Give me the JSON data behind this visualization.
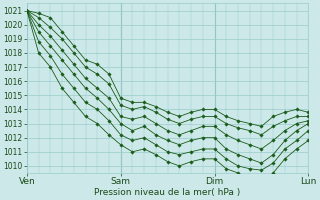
{
  "title": "Pression niveau de la mer( hPa )",
  "ylabel_values": [
    1010,
    1011,
    1012,
    1013,
    1014,
    1015,
    1016,
    1017,
    1018,
    1019,
    1020,
    1021
  ],
  "ylim": [
    1009.5,
    1021.5
  ],
  "xlim": [
    0,
    72
  ],
  "xtick_positions": [
    0,
    24,
    48,
    72
  ],
  "xtick_labels": [
    "Ven",
    "Sam",
    "Dim",
    "Lun"
  ],
  "bg_color": "#cce8e8",
  "grid_color": "#99cccc",
  "line_color": "#1a5c1a",
  "lines": [
    {
      "x": [
        0,
        3,
        6,
        9,
        12,
        15,
        18,
        21,
        24,
        27,
        30,
        33,
        36,
        39,
        42,
        45,
        48,
        51,
        54,
        57,
        60,
        63,
        66,
        69,
        72
      ],
      "y": [
        1021,
        1020.8,
        1020.5,
        1019.5,
        1018.5,
        1017.5,
        1017.2,
        1016.5,
        1014.8,
        1014.5,
        1014.5,
        1014.2,
        1013.8,
        1013.5,
        1013.8,
        1014.0,
        1014.0,
        1013.5,
        1013.2,
        1013.0,
        1012.8,
        1013.5,
        1013.8,
        1014.0,
        1013.8
      ]
    },
    {
      "x": [
        0,
        3,
        6,
        9,
        12,
        15,
        18,
        21,
        24,
        27,
        30,
        33,
        36,
        39,
        42,
        45,
        48,
        51,
        54,
        57,
        60,
        63,
        66,
        69,
        72
      ],
      "y": [
        1021,
        1020.5,
        1019.8,
        1019.0,
        1018.0,
        1017.0,
        1016.5,
        1015.8,
        1014.3,
        1014.0,
        1014.2,
        1013.8,
        1013.3,
        1013.0,
        1013.3,
        1013.5,
        1013.5,
        1013.0,
        1012.7,
        1012.5,
        1012.2,
        1012.8,
        1013.2,
        1013.5,
        1013.5
      ]
    },
    {
      "x": [
        0,
        3,
        6,
        9,
        12,
        15,
        18,
        21,
        24,
        27,
        30,
        33,
        36,
        39,
        42,
        45,
        48,
        51,
        54,
        57,
        60,
        63,
        66,
        69,
        72
      ],
      "y": [
        1021,
        1020.0,
        1019.2,
        1018.2,
        1017.2,
        1016.2,
        1015.5,
        1014.8,
        1013.5,
        1013.3,
        1013.5,
        1013.0,
        1012.5,
        1012.2,
        1012.5,
        1012.8,
        1012.8,
        1012.2,
        1011.8,
        1011.5,
        1011.2,
        1011.8,
        1012.5,
        1013.0,
        1013.2
      ]
    },
    {
      "x": [
        0,
        3,
        6,
        9,
        12,
        15,
        18,
        21,
        24,
        27,
        30,
        33,
        36,
        39,
        42,
        45,
        48,
        51,
        54,
        57,
        60,
        63,
        66,
        69,
        72
      ],
      "y": [
        1021,
        1019.5,
        1018.5,
        1017.5,
        1016.5,
        1015.5,
        1014.8,
        1014.0,
        1013.0,
        1012.5,
        1012.8,
        1012.2,
        1011.8,
        1011.5,
        1011.8,
        1012.0,
        1012.0,
        1011.2,
        1010.8,
        1010.5,
        1010.2,
        1010.8,
        1011.8,
        1012.5,
        1013.0
      ]
    },
    {
      "x": [
        0,
        3,
        6,
        9,
        12,
        15,
        18,
        21,
        24,
        27,
        30,
        33,
        36,
        39,
        42,
        45,
        48,
        51,
        54,
        57,
        60,
        63,
        66,
        69,
        72
      ],
      "y": [
        1021,
        1018.8,
        1017.8,
        1016.5,
        1015.5,
        1014.5,
        1014.0,
        1013.2,
        1012.2,
        1011.8,
        1012.0,
        1011.5,
        1011.0,
        1010.8,
        1011.0,
        1011.2,
        1011.2,
        1010.5,
        1010.0,
        1009.8,
        1009.7,
        1010.2,
        1011.2,
        1011.8,
        1012.5
      ]
    },
    {
      "x": [
        0,
        3,
        6,
        9,
        12,
        15,
        18,
        21,
        24,
        27,
        30,
        33,
        36,
        39,
        42,
        45,
        48,
        51,
        54,
        57,
        60,
        63,
        66,
        69,
        72
      ],
      "y": [
        1021,
        1018.0,
        1017.0,
        1015.5,
        1014.5,
        1013.5,
        1013.0,
        1012.2,
        1011.5,
        1011.0,
        1011.2,
        1010.8,
        1010.3,
        1010.0,
        1010.3,
        1010.5,
        1010.5,
        1009.8,
        1009.5,
        1009.2,
        1009.0,
        1009.5,
        1010.5,
        1011.2,
        1011.8
      ]
    }
  ]
}
